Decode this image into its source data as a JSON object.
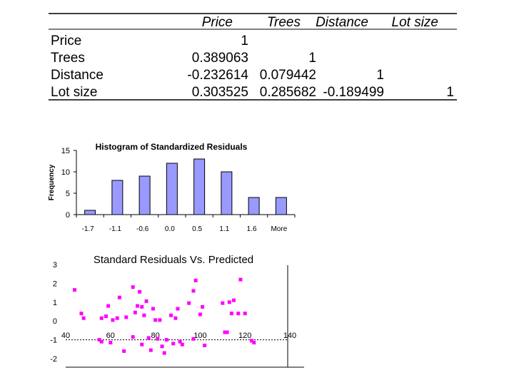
{
  "chart_data": [
    {
      "type": "table",
      "columns": [
        "Price",
        "Trees",
        "Distance",
        "Lot size"
      ],
      "rows": [
        {
          "label": "Price",
          "cells": [
            "1",
            "",
            "",
            ""
          ]
        },
        {
          "label": "Trees",
          "cells": [
            "0.389063",
            "1",
            "",
            ""
          ]
        },
        {
          "label": "Distance",
          "cells": [
            "-0.232614",
            "0.079442",
            "1",
            ""
          ]
        },
        {
          "label": "Lot size",
          "cells": [
            "0.303525",
            "0.285682",
            "-0.189499",
            "1"
          ]
        }
      ]
    },
    {
      "type": "bar",
      "title": "Histogram of Standardized Residuals",
      "ylabel": "Frequency",
      "xlabel": "",
      "categories": [
        "-1.7",
        "-1.1",
        "-0.6",
        "0.0",
        "0.5",
        "1.1",
        "1.6",
        "More"
      ],
      "values": [
        1,
        8,
        9,
        12,
        13,
        10,
        4,
        4
      ],
      "ylim": [
        0,
        15
      ],
      "yticks": [
        "0",
        "5",
        "10",
        "15"
      ],
      "bar_color": "#9999ff"
    },
    {
      "type": "scatter",
      "title": "Standard Residuals Vs. Predicted",
      "xlabel": "",
      "ylabel": "",
      "xlim": [
        40,
        140
      ],
      "ylim": [
        -2,
        3
      ],
      "xticks": [
        "40",
        "60",
        "80",
        "100",
        "120",
        "140"
      ],
      "yticks": [
        "-2",
        "-1",
        "0",
        "1",
        "2",
        "3"
      ],
      "point_color": "#ff00ff",
      "reference_line_y": -1,
      "points": [
        [
          44,
          1.65
        ],
        [
          47,
          0.4
        ],
        [
          48,
          0.15
        ],
        [
          55,
          -1.0
        ],
        [
          56,
          0.15
        ],
        [
          56,
          -1.1
        ],
        [
          58,
          0.25
        ],
        [
          59,
          0.8
        ],
        [
          60,
          -1.15
        ],
        [
          61,
          0.05
        ],
        [
          63,
          0.15
        ],
        [
          64,
          1.25
        ],
        [
          66,
          -1.6
        ],
        [
          67,
          0.2
        ],
        [
          70,
          1.8
        ],
        [
          70,
          -0.85
        ],
        [
          71,
          0.45
        ],
        [
          72,
          0.8
        ],
        [
          73,
          1.55
        ],
        [
          74,
          -1.25
        ],
        [
          74,
          0.75
        ],
        [
          75,
          0.3
        ],
        [
          76,
          1.05
        ],
        [
          77,
          -0.9
        ],
        [
          78,
          -1.55
        ],
        [
          79,
          0.65
        ],
        [
          80,
          0.05
        ],
        [
          81,
          -0.95
        ],
        [
          82,
          0.05
        ],
        [
          83,
          -1.35
        ],
        [
          84,
          -1.7
        ],
        [
          85,
          -1.0
        ],
        [
          87,
          0.3
        ],
        [
          88,
          -1.2
        ],
        [
          89,
          0.15
        ],
        [
          90,
          0.65
        ],
        [
          91,
          -1.1
        ],
        [
          92,
          -1.25
        ],
        [
          95,
          0.95
        ],
        [
          97,
          1.6
        ],
        [
          97,
          -0.95
        ],
        [
          98,
          2.15
        ],
        [
          100,
          0.35
        ],
        [
          101,
          0.75
        ],
        [
          102,
          -1.3
        ],
        [
          110,
          0.95
        ],
        [
          111,
          -0.6
        ],
        [
          112,
          -0.6
        ],
        [
          113,
          1.0
        ],
        [
          114,
          0.4
        ],
        [
          115,
          1.1
        ],
        [
          117,
          0.4
        ],
        [
          118,
          2.2
        ],
        [
          120,
          0.4
        ],
        [
          123,
          -1.05
        ],
        [
          124,
          -1.15
        ]
      ]
    }
  ]
}
